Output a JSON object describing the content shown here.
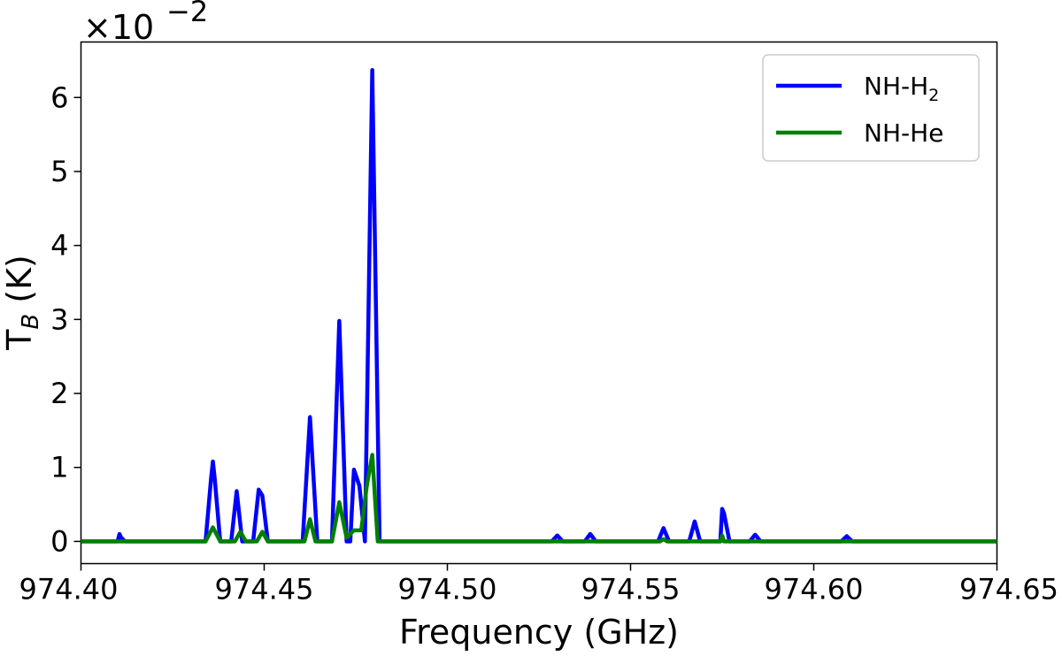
{
  "chart_data": {
    "type": "line",
    "xlabel": "Frequency (GHz)",
    "ylabel_main": "T",
    "ylabel_sub": "B",
    "ylabel_unit": " (K)",
    "scale_base": "×10",
    "scale_exp": "−2",
    "xlim": [
      974.4,
      974.65
    ],
    "ylim": [
      -0.3,
      6.75
    ],
    "x_ticks": [
      974.4,
      974.45,
      974.5,
      974.55,
      974.6,
      974.65
    ],
    "x_tick_labels": [
      "974.40",
      "974.45",
      "974.50",
      "974.55",
      "974.60",
      "974.65"
    ],
    "y_ticks": [
      0,
      1,
      2,
      3,
      4,
      5,
      6
    ],
    "y_tick_labels": [
      "0",
      "1",
      "2",
      "3",
      "4",
      "5",
      "6"
    ],
    "grid": false,
    "legend_position": "top-right",
    "series": [
      {
        "name": "NH-H",
        "name_sub": "2",
        "color": "#0000ff",
        "x": [
          974.4,
          974.41,
          974.4105,
          974.411,
          974.412,
          974.434,
          974.4355,
          974.436,
          974.4365,
          974.438,
          974.441,
          974.4425,
          974.444,
          974.447,
          974.4485,
          974.4495,
          974.451,
          974.4605,
          974.4625,
          974.4645,
          974.4685,
          974.4705,
          974.4725,
          974.4735,
          974.4745,
          974.476,
          974.4775,
          974.4795,
          974.4815,
          974.5285,
          974.53,
          974.5315,
          974.5375,
          974.539,
          974.5405,
          974.5575,
          974.559,
          974.5605,
          974.566,
          974.5675,
          974.569,
          974.5745,
          974.575,
          974.5755,
          974.577,
          974.5825,
          974.584,
          974.5855,
          974.6075,
          974.609,
          974.6105,
          974.65
        ],
        "y": [
          0,
          0,
          0.1,
          0.05,
          0,
          0,
          0.85,
          1.08,
          0.85,
          0,
          0,
          0.68,
          0,
          0,
          0.7,
          0.62,
          0,
          0,
          1.68,
          0,
          0,
          2.98,
          0,
          0,
          0.97,
          0.75,
          0,
          6.37,
          0,
          0,
          0.08,
          0,
          0,
          0.1,
          0,
          0,
          0.18,
          0,
          0,
          0.27,
          0,
          0,
          0.44,
          0.38,
          0,
          0,
          0.09,
          0,
          0,
          0.07,
          0,
          0
        ]
      },
      {
        "name": "NH-He",
        "color": "#008000",
        "x": [
          974.4,
          974.434,
          974.436,
          974.438,
          974.442,
          974.4435,
          974.445,
          974.448,
          974.4495,
          974.451,
          974.461,
          974.4625,
          974.464,
          974.4685,
          974.4705,
          974.4725,
          974.4745,
          974.4765,
          974.478,
          974.4795,
          974.481,
          974.558,
          974.559,
          974.56,
          974.5745,
          974.575,
          974.5755,
          974.65
        ],
        "y": [
          0,
          0,
          0.19,
          0,
          0,
          0.13,
          0,
          0,
          0.13,
          0,
          0,
          0.3,
          0,
          0,
          0.53,
          0.05,
          0.15,
          0.15,
          0.75,
          1.17,
          0,
          0,
          0.03,
          0,
          0,
          0.08,
          0,
          0
        ]
      }
    ]
  }
}
